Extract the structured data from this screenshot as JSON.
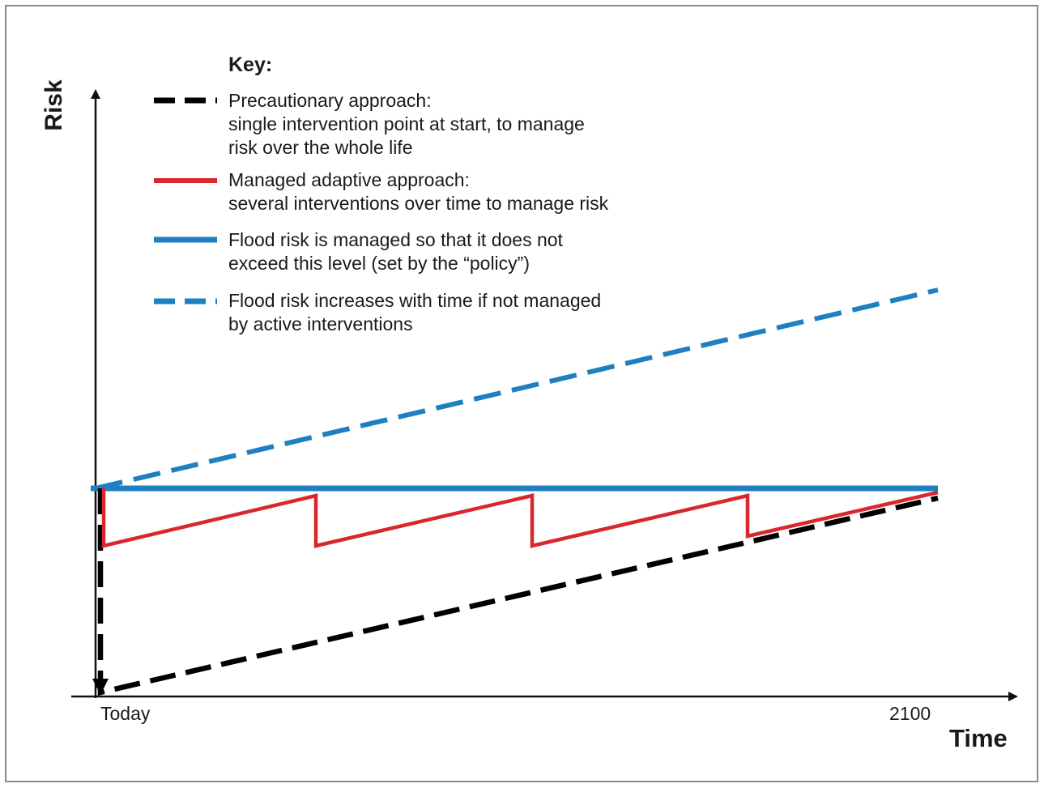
{
  "colors": {
    "precautionary": "#000000",
    "adaptive": "#d9272e",
    "managed_level": "#1f7fc0",
    "unmanaged": "#1f7fc0",
    "axis": "#111111"
  },
  "key": {
    "title": "Key:",
    "entries": [
      {
        "id": "precautionary",
        "style": "dashed",
        "color": "#000000",
        "lines": [
          "Precautionary approach:",
          "single intervention point at start, to manage",
          "risk over the whole life"
        ]
      },
      {
        "id": "adaptive",
        "style": "solid",
        "color": "#d9272e",
        "lines": [
          "Managed adaptive approach:",
          "several interventions over time to manage risk"
        ]
      },
      {
        "id": "managed_level",
        "style": "solid",
        "color": "#1f7fc0",
        "lines": [
          "Flood risk is managed so that it does not",
          "exceed this level (set by the “policy”)"
        ]
      },
      {
        "id": "unmanaged",
        "style": "dashed",
        "color": "#1f7fc0",
        "lines": [
          "Flood risk increases with time if not managed",
          "by active interventions"
        ]
      }
    ]
  },
  "axes": {
    "y_label": "Risk",
    "x_label": "Time",
    "x_start_label": "Today",
    "x_end_label": "2100"
  }
}
